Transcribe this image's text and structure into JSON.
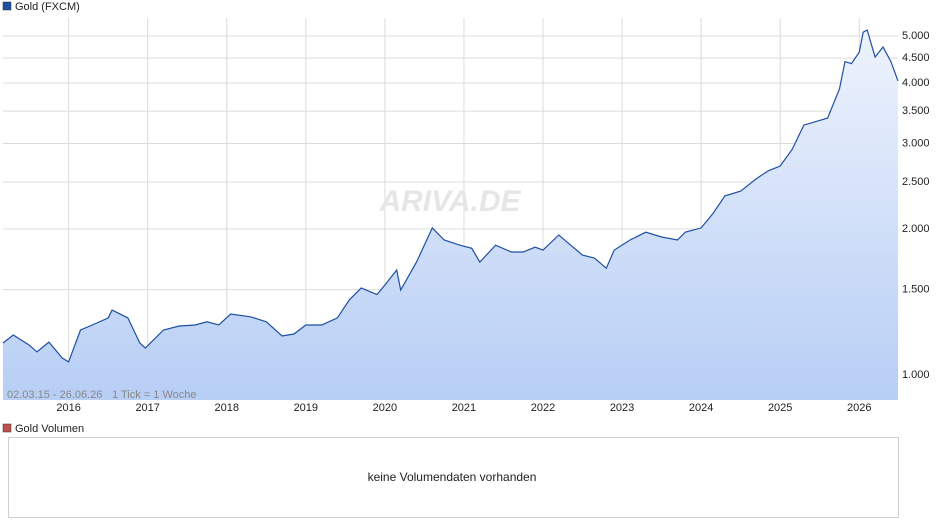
{
  "chart_data": {
    "type": "line",
    "log_scale": true,
    "grid": true,
    "watermark": "ARIVA.DE",
    "date_range": "02.03.15 - 26.06.26",
    "interval": "1 Tick = 1 Woche",
    "x": [
      2015.17,
      2015.3,
      2015.5,
      2015.6,
      2015.75,
      2015.92,
      2016.0,
      2016.15,
      2016.3,
      2016.5,
      2016.55,
      2016.75,
      2016.9,
      2016.97,
      2017.2,
      2017.4,
      2017.6,
      2017.75,
      2017.9,
      2018.05,
      2018.3,
      2018.5,
      2018.7,
      2018.85,
      2019.0,
      2019.2,
      2019.4,
      2019.55,
      2019.7,
      2019.9,
      2020.0,
      2020.15,
      2020.2,
      2020.4,
      2020.6,
      2020.75,
      2020.95,
      2021.1,
      2021.2,
      2021.4,
      2021.6,
      2021.75,
      2021.9,
      2022.0,
      2022.2,
      2022.35,
      2022.5,
      2022.65,
      2022.8,
      2022.9,
      2023.1,
      2023.3,
      2023.5,
      2023.7,
      2023.8,
      2024.0,
      2024.15,
      2024.3,
      2024.5,
      2024.7,
      2024.85,
      2025.0,
      2025.15,
      2025.3,
      2025.5,
      2025.6,
      2025.75,
      2025.82,
      2025.9,
      2026.0,
      2026.05,
      2026.1,
      2026.2,
      2026.3,
      2026.4,
      2026.49
    ],
    "series": [
      {
        "name": "Gold (FXCM)",
        "color": "#1f4fa3",
        "values": [
          1164,
          1209,
          1153,
          1116,
          1169,
          1084,
          1064,
          1238,
          1268,
          1311,
          1361,
          1311,
          1164,
          1136,
          1238,
          1262,
          1268,
          1287,
          1268,
          1336,
          1318,
          1287,
          1203,
          1215,
          1268,
          1268,
          1311,
          1428,
          1512,
          1465,
          1533,
          1646,
          1497,
          1709,
          2010,
          1898,
          1852,
          1825,
          1709,
          1852,
          1793,
          1793,
          1834,
          1809,
          1944,
          1852,
          1767,
          1742,
          1660,
          1809,
          1898,
          1970,
          1925,
          1898,
          1970,
          2010,
          2152,
          2340,
          2394,
          2540,
          2636,
          2697,
          2917,
          3275,
          3349,
          3385,
          3890,
          4426,
          4384,
          4632,
          5090,
          5140,
          4523,
          4745,
          4426,
          4040
        ]
      }
    ],
    "xlim": [
      2015.17,
      2026.49
    ],
    "xticks": [
      2016,
      2017,
      2018,
      2019,
      2020,
      2021,
      2022,
      2023,
      2024,
      2025,
      2026
    ],
    "ylim": [
      888,
      5445
    ],
    "yticks": [
      {
        "value": 1000,
        "label": "1.000"
      },
      {
        "value": 1500,
        "label": "1.500"
      },
      {
        "value": 2000,
        "label": "2.000"
      },
      {
        "value": 2500,
        "label": "2.500"
      },
      {
        "value": 3000,
        "label": "3.000"
      },
      {
        "value": 3500,
        "label": "3.500"
      },
      {
        "value": 4000,
        "label": "4.000"
      },
      {
        "value": 4500,
        "label": "4.500"
      },
      {
        "value": 5000,
        "label": "5.000"
      }
    ]
  },
  "volume_panel": {
    "title": "Gold Volumen",
    "color": "#c0504d",
    "message": "keine Volumendaten vorhanden"
  }
}
